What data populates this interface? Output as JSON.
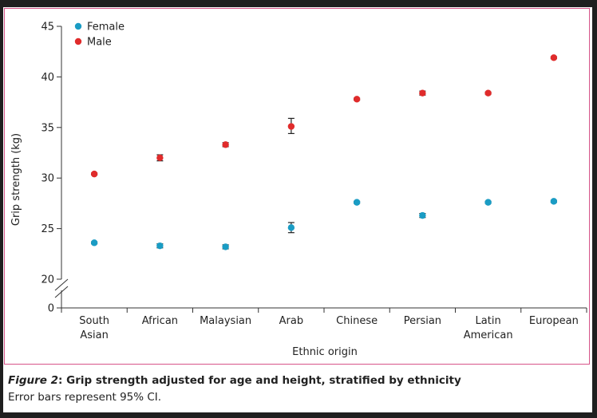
{
  "chart_data": {
    "type": "scatter",
    "title": "",
    "xlabel": "Ethnic origin",
    "ylabel": "Grip strength (kg)",
    "ylim": [
      20,
      45
    ],
    "y_ticks": [
      20,
      25,
      30,
      35,
      40,
      45
    ],
    "y_axis_break": true,
    "y_zero_label": "0",
    "categories": [
      [
        "South",
        "Asian"
      ],
      [
        "African"
      ],
      [
        "Malaysian"
      ],
      [
        "Arab"
      ],
      [
        "Chinese"
      ],
      [
        "Persian"
      ],
      [
        "Latin",
        "American"
      ],
      [
        "European"
      ]
    ],
    "series": [
      {
        "name": "Female",
        "color": "#1a9cc4",
        "values": [
          23.6,
          23.3,
          23.2,
          25.1,
          27.6,
          26.3,
          27.6,
          27.7
        ],
        "ci_low": [
          23.5,
          23.1,
          23.0,
          24.6,
          27.5,
          26.1,
          27.5,
          27.6
        ],
        "ci_high": [
          23.7,
          23.5,
          23.4,
          25.6,
          27.7,
          26.5,
          27.7,
          27.8
        ]
      },
      {
        "name": "Male",
        "color": "#e02b2b",
        "values": [
          30.4,
          32.0,
          33.3,
          35.1,
          37.8,
          38.4,
          38.4,
          41.9
        ],
        "ci_low": [
          30.3,
          31.7,
          33.1,
          34.4,
          37.7,
          38.2,
          38.3,
          41.8
        ],
        "ci_high": [
          30.5,
          32.3,
          33.5,
          35.9,
          37.9,
          38.6,
          38.5,
          42.0
        ]
      }
    ],
    "legend_position": "top-left"
  },
  "caption": {
    "figure_label": "Figure 2",
    "title": ": Grip strength adjusted for age and height, stratified by ethnicity",
    "note": "Error bars represent 95% CI."
  }
}
